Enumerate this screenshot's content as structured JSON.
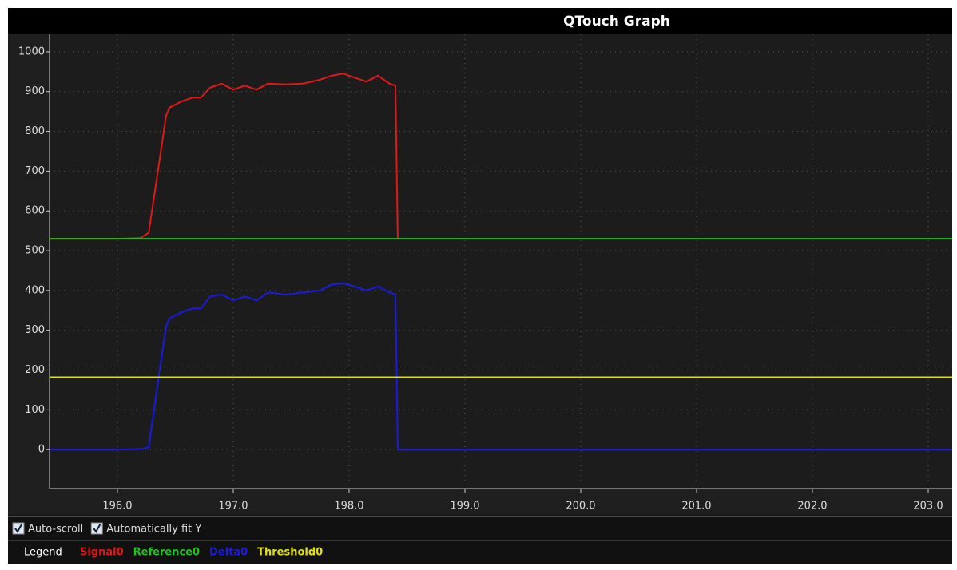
{
  "chart_data": {
    "type": "line",
    "title": "QTouch Graph",
    "x": [
      195.414,
      196.0,
      196.2,
      196.27,
      196.35,
      196.42,
      196.45,
      196.55,
      196.65,
      196.72,
      196.8,
      196.9,
      197.0,
      197.1,
      197.2,
      197.3,
      197.45,
      197.6,
      197.75,
      197.85,
      197.95,
      198.05,
      198.15,
      198.25,
      198.35,
      198.4,
      198.42,
      199.0,
      200.0,
      201.0,
      202.0,
      203.0,
      203.207
    ],
    "series": [
      {
        "name": "Signal0",
        "color": "#e01818",
        "values": [
          530,
          530,
          532,
          545,
          700,
          840,
          860,
          875,
          885,
          885,
          910,
          920,
          905,
          915,
          905,
          920,
          918,
          920,
          930,
          940,
          945,
          935,
          925,
          940,
          920,
          915,
          530,
          null,
          null,
          null,
          null,
          null,
          null
        ]
      },
      {
        "name": "Reference0",
        "color": "#22c022",
        "values": [
          530,
          530,
          530,
          530,
          530,
          530,
          530,
          530,
          530,
          530,
          530,
          530,
          530,
          530,
          530,
          530,
          530,
          530,
          530,
          530,
          530,
          530,
          530,
          530,
          530,
          530,
          530,
          530,
          530,
          530,
          530,
          530,
          530
        ]
      },
      {
        "name": "Delta0",
        "color": "#1a1ae0",
        "values": [
          0,
          0,
          2,
          5,
          170,
          310,
          330,
          345,
          355,
          355,
          385,
          390,
          375,
          385,
          375,
          395,
          390,
          395,
          400,
          415,
          418,
          410,
          400,
          410,
          395,
          390,
          0,
          0,
          0,
          0,
          0,
          0,
          0
        ]
      },
      {
        "name": "Threshold0",
        "color": "#e0e010",
        "values": [
          182,
          182,
          182,
          182,
          182,
          182,
          182,
          182,
          182,
          182,
          182,
          182,
          182,
          182,
          182,
          182,
          182,
          182,
          182,
          182,
          182,
          182,
          182,
          182,
          182,
          182,
          182,
          182,
          182,
          182,
          182,
          182,
          182
        ]
      }
    ],
    "xlim": [
      195.414,
      203.207
    ],
    "xticks": [
      {
        "value": 196,
        "label": "196.0"
      },
      {
        "value": 197,
        "label": "197.0"
      },
      {
        "value": 198,
        "label": "198.0"
      },
      {
        "value": 199,
        "label": "199.0"
      },
      {
        "value": 200,
        "label": "200.0"
      },
      {
        "value": 201,
        "label": "201.0"
      },
      {
        "value": 202,
        "label": "202.0"
      },
      {
        "value": 203,
        "label": "203.0"
      }
    ],
    "ylim": [
      -98,
      1044
    ],
    "yticks": [
      0,
      100,
      200,
      300,
      400,
      500,
      600,
      700,
      800,
      900,
      1000
    ],
    "grid": true,
    "legend_title": "Legend"
  },
  "controls": {
    "checkboxes": [
      {
        "label": "Auto-scroll",
        "checked": true
      },
      {
        "label": "Automatically fit Y",
        "checked": true
      }
    ]
  }
}
